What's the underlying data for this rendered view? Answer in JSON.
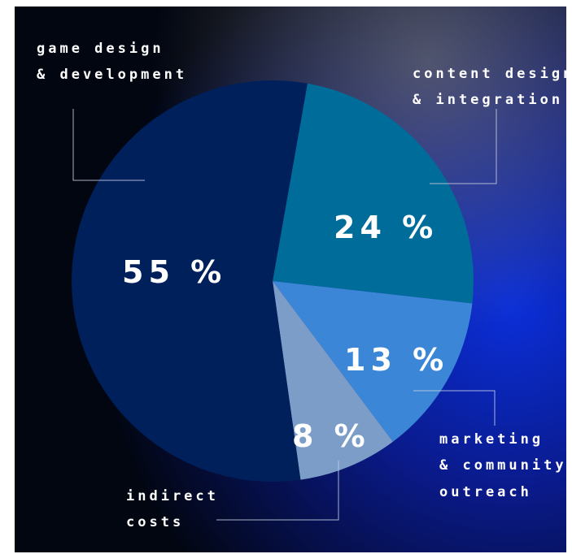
{
  "chart_data": {
    "type": "pie",
    "categories": [
      "game design & development",
      "content design & integration",
      "marketing & community outreach",
      "indirect costs"
    ],
    "values": [
      55,
      24,
      13,
      8
    ],
    "value_labels": [
      "55 %",
      "24 %",
      "13 %",
      "8 %"
    ],
    "category_label_lines": [
      [
        "game design",
        "& development"
      ],
      [
        "content design",
        "& integration"
      ],
      [
        "marketing",
        "& community",
        "outreach"
      ],
      [
        "indirect",
        "costs"
      ]
    ],
    "colors": [
      "#00205b",
      "#006c99",
      "#3b86d6",
      "#7b9dc8"
    ],
    "start_angle_deg": 10,
    "direction": "clockwise",
    "legend": "none",
    "background": "dark blue photographic texture"
  }
}
